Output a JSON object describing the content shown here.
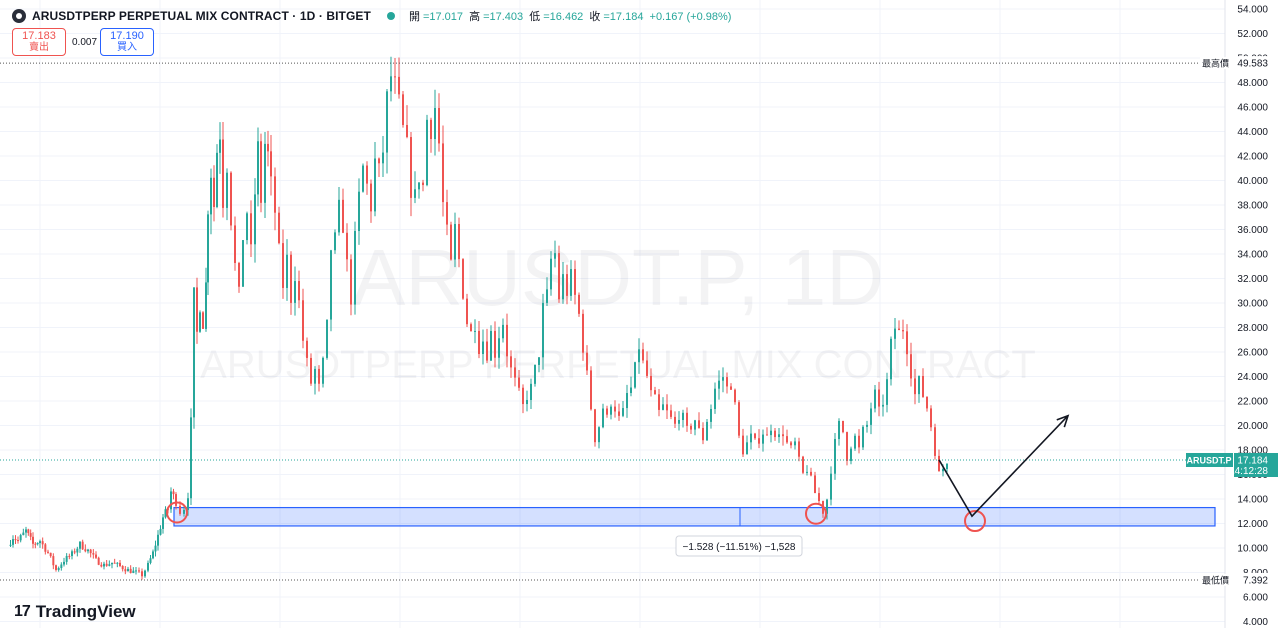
{
  "header": {
    "title": "ARUSDTPERP PERPETUAL MIX CONTRACT · 1D · BITGET",
    "open_label": "開",
    "open": "=17.017",
    "high_label": "高",
    "high": "=17.403",
    "low_label": "低",
    "low": "=16.462",
    "close_label": "收",
    "close": "=17.184",
    "change": "+0.167 (+0.98%)"
  },
  "trade": {
    "sell_price": "17.183",
    "sell_label": "賣出",
    "spread": "0.007",
    "buy_price": "17.190",
    "buy_label": "買入"
  },
  "watermark": {
    "symbol": "ARUSDT.P, 1D",
    "name": "ARUSDTPERP PERPETUAL MIX CONTRACT"
  },
  "price_scale": {
    "ticks": [
      "54.000",
      "52.000",
      "50.000",
      "48.000",
      "46.000",
      "44.000",
      "42.000",
      "40.000",
      "38.000",
      "36.000",
      "34.000",
      "32.000",
      "30.000",
      "28.000",
      "26.000",
      "24.000",
      "22.000",
      "20.000",
      "18.000",
      "16.000",
      "14.000",
      "12.000",
      "10.000",
      "8.000",
      "6.000",
      "4.000"
    ],
    "high_label": "最高價",
    "high_value": "49.583",
    "low_label": "最低價",
    "low_value": "7.392",
    "last_symbol": "ARUSDT.P",
    "last_price": "17.184",
    "countdown": "14:12:28"
  },
  "measure": {
    "label": "−1.528 (−11.51%) −1,528"
  },
  "branding": {
    "logo_text": "TradingView",
    "logo_mark": "17"
  },
  "colors": {
    "up": "#26a69a",
    "down": "#ef5350",
    "zone": "#2962ff",
    "circle": "#ef5350",
    "last_price_bg": "#26a69a"
  },
  "chart_data": {
    "type": "candlestick",
    "ylim": [
      4,
      55
    ],
    "y_ticks": [
      54,
      52,
      50,
      48,
      46,
      44,
      42,
      40,
      38,
      36,
      34,
      32,
      30,
      28,
      26,
      24,
      22,
      20,
      18,
      16,
      14,
      12,
      10,
      8,
      6,
      4
    ],
    "price_path": [
      [
        0,
        10.2
      ],
      [
        5,
        10.9
      ],
      [
        10,
        10.6
      ],
      [
        18,
        11.4
      ],
      [
        25,
        10.3
      ],
      [
        32,
        10.6
      ],
      [
        40,
        9.6
      ],
      [
        48,
        8.2
      ],
      [
        56,
        9.0
      ],
      [
        64,
        9.5
      ],
      [
        72,
        10.3
      ],
      [
        80,
        9.8
      ],
      [
        88,
        9.0
      ],
      [
        96,
        8.6
      ],
      [
        104,
        8.8
      ],
      [
        112,
        8.5
      ],
      [
        120,
        8.2
      ],
      [
        128,
        8.0
      ],
      [
        134,
        7.8
      ],
      [
        140,
        8.6
      ],
      [
        145,
        9.6
      ],
      [
        150,
        11.0
      ],
      [
        155,
        12.5
      ],
      [
        160,
        13.2
      ],
      [
        163,
        14.6
      ],
      [
        168,
        13.8
      ],
      [
        172,
        13.0
      ],
      [
        176,
        13.3
      ],
      [
        180,
        14.4
      ],
      [
        183,
        20.2
      ],
      [
        186,
        30.5
      ],
      [
        189,
        27.5
      ],
      [
        192,
        30.0
      ],
      [
        195,
        28.5
      ],
      [
        198,
        31.5
      ],
      [
        200,
        38.0
      ],
      [
        203,
        40.8
      ],
      [
        206,
        38.0
      ],
      [
        209,
        42.5
      ],
      [
        212,
        44.0
      ],
      [
        215,
        38.5
      ],
      [
        219,
        41.5
      ],
      [
        223,
        37.0
      ],
      [
        227,
        33.0
      ],
      [
        231,
        30.5
      ],
      [
        235,
        35.5
      ],
      [
        239,
        37.5
      ],
      [
        243,
        34.0
      ],
      [
        247,
        39.0
      ],
      [
        250,
        42.5
      ],
      [
        253,
        38.5
      ],
      [
        257,
        43.0
      ],
      [
        260,
        42.0
      ],
      [
        263,
        39.5
      ],
      [
        267,
        37.5
      ],
      [
        271,
        34.0
      ],
      [
        275,
        31.5
      ],
      [
        279,
        33.5
      ],
      [
        283,
        30.5
      ],
      [
        287,
        32.5
      ],
      [
        291,
        30.0
      ],
      [
        295,
        27.0
      ],
      [
        299,
        25.0
      ],
      [
        303,
        23.5
      ],
      [
        307,
        24.5
      ],
      [
        311,
        23.0
      ],
      [
        315,
        25.0
      ],
      [
        319,
        28.0
      ],
      [
        323,
        34.5
      ],
      [
        327,
        35.0
      ],
      [
        331,
        37.5
      ],
      [
        335,
        36.5
      ],
      [
        339,
        33.0
      ],
      [
        343,
        30.5
      ],
      [
        347,
        35.0
      ],
      [
        351,
        38.5
      ],
      [
        355,
        41.0
      ],
      [
        359,
        39.5
      ],
      [
        363,
        38.0
      ],
      [
        367,
        41.5
      ],
      [
        371,
        40.5
      ],
      [
        375,
        42.5
      ],
      [
        379,
        46.5
      ],
      [
        383,
        48.5
      ],
      [
        387,
        47.5
      ],
      [
        391,
        46.0
      ],
      [
        395,
        44.0
      ],
      [
        399,
        42.5
      ],
      [
        403,
        39.5
      ],
      [
        407,
        38.5
      ],
      [
        411,
        40.5
      ],
      [
        415,
        39.5
      ],
      [
        419,
        45.0
      ],
      [
        423,
        44.5
      ],
      [
        427,
        46.0
      ],
      [
        431,
        43.0
      ],
      [
        435,
        38.0
      ],
      [
        439,
        35.5
      ],
      [
        443,
        33.0
      ],
      [
        447,
        36.0
      ],
      [
        451,
        33.5
      ],
      [
        455,
        31.0
      ],
      [
        459,
        28.5
      ],
      [
        463,
        27.5
      ],
      [
        467,
        28.5
      ],
      [
        471,
        26.5
      ],
      [
        475,
        27.0
      ],
      [
        479,
        26.0
      ],
      [
        483,
        27.5
      ],
      [
        487,
        26.0
      ],
      [
        491,
        27.5
      ],
      [
        495,
        28.5
      ],
      [
        499,
        26.0
      ],
      [
        503,
        24.5
      ],
      [
        507,
        23.5
      ],
      [
        511,
        22.5
      ],
      [
        515,
        21.5
      ],
      [
        519,
        22.5
      ],
      [
        523,
        23.0
      ],
      [
        527,
        24.5
      ],
      [
        531,
        26.0
      ],
      [
        535,
        29.5
      ],
      [
        539,
        30.5
      ],
      [
        543,
        33.5
      ],
      [
        547,
        34.0
      ],
      [
        551,
        30.5
      ],
      [
        555,
        32.0
      ],
      [
        559,
        31.0
      ],
      [
        563,
        32.0
      ],
      [
        567,
        30.5
      ],
      [
        571,
        29.0
      ],
      [
        575,
        26.5
      ],
      [
        579,
        24.0
      ],
      [
        583,
        21.5
      ],
      [
        587,
        19.0
      ],
      [
        591,
        20.0
      ],
      [
        595,
        21.5
      ],
      [
        599,
        20.5
      ],
      [
        603,
        22.0
      ],
      [
        607,
        21.5
      ],
      [
        611,
        20.5
      ],
      [
        615,
        21.0
      ],
      [
        619,
        22.5
      ],
      [
        623,
        23.0
      ],
      [
        627,
        24.5
      ],
      [
        631,
        26.5
      ],
      [
        635,
        25.0
      ],
      [
        639,
        24.0
      ],
      [
        643,
        22.5
      ],
      [
        647,
        22.0
      ],
      [
        651,
        21.0
      ],
      [
        655,
        21.5
      ],
      [
        659,
        21.0
      ],
      [
        663,
        20.5
      ],
      [
        667,
        20.0
      ],
      [
        671,
        21.0
      ],
      [
        675,
        20.5
      ],
      [
        679,
        19.5
      ],
      [
        683,
        20.0
      ],
      [
        687,
        20.5
      ],
      [
        691,
        19.5
      ],
      [
        695,
        19.0
      ],
      [
        699,
        20.5
      ],
      [
        703,
        21.5
      ],
      [
        707,
        23.0
      ],
      [
        711,
        23.5
      ],
      [
        715,
        24.0
      ],
      [
        719,
        23.0
      ],
      [
        723,
        23.5
      ],
      [
        727,
        21.5
      ],
      [
        731,
        19.0
      ],
      [
        735,
        18.0
      ],
      [
        739,
        18.5
      ],
      [
        743,
        19.0
      ],
      [
        747,
        18.5
      ],
      [
        751,
        19.0
      ],
      [
        755,
        19.5
      ],
      [
        759,
        19.0
      ],
      [
        763,
        20.0
      ],
      [
        767,
        19.5
      ],
      [
        771,
        19.0
      ],
      [
        775,
        19.5
      ],
      [
        779,
        18.5
      ],
      [
        783,
        18.0
      ],
      [
        787,
        18.5
      ],
      [
        791,
        17.0
      ],
      [
        795,
        16.0
      ],
      [
        799,
        16.5
      ],
      [
        803,
        15.5
      ],
      [
        807,
        14.5
      ],
      [
        811,
        13.8
      ],
      [
        815,
        13.0
      ],
      [
        819,
        14.0
      ],
      [
        823,
        16.5
      ],
      [
        827,
        18.5
      ],
      [
        831,
        20.0
      ],
      [
        835,
        19.5
      ],
      [
        839,
        17.5
      ],
      [
        843,
        18.5
      ],
      [
        847,
        19.0
      ],
      [
        851,
        18.0
      ],
      [
        855,
        19.5
      ],
      [
        859,
        20.0
      ],
      [
        863,
        21.5
      ],
      [
        867,
        22.5
      ],
      [
        871,
        21.0
      ],
      [
        875,
        22.0
      ],
      [
        879,
        23.5
      ],
      [
        883,
        26.5
      ],
      [
        887,
        28.0
      ],
      [
        891,
        27.5
      ],
      [
        895,
        28.0
      ],
      [
        899,
        26.5
      ],
      [
        903,
        24.5
      ],
      [
        907,
        22.5
      ],
      [
        911,
        23.5
      ],
      [
        915,
        22.5
      ],
      [
        919,
        21.5
      ],
      [
        923,
        20.0
      ],
      [
        927,
        18.0
      ],
      [
        931,
        16.0
      ],
      [
        935,
        16.5
      ],
      [
        939,
        17.2
      ]
    ],
    "high": 49.583,
    "low": 7.392,
    "last": 17.184,
    "support_zone": [
      11.8,
      13.3
    ],
    "projection": [
      [
        939,
        17.2
      ],
      [
        972,
        12.6
      ],
      [
        1068,
        20.8
      ]
    ],
    "circles": [
      [
        177,
        12.9
      ],
      [
        816,
        12.8
      ],
      [
        975,
        12.2
      ]
    ]
  }
}
